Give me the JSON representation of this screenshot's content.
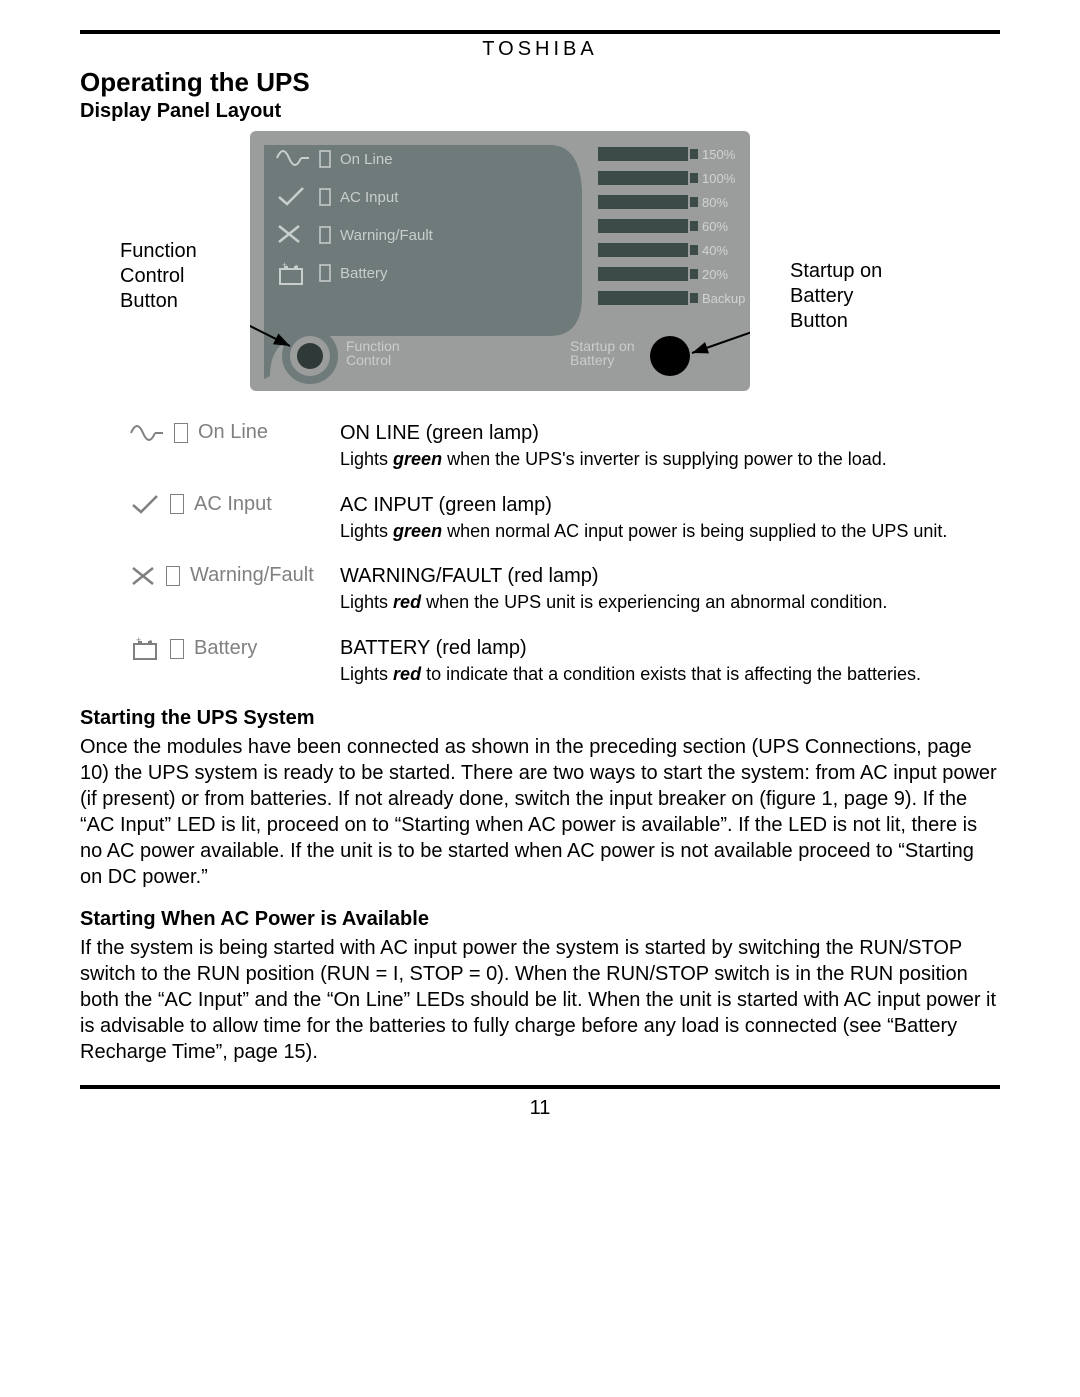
{
  "brand": "TOSHIBA",
  "page_number": "11",
  "h1": "Operating the UPS",
  "h2_panel": "Display Panel Layout",
  "h3_start": "Starting the UPS System",
  "h3_ac": "Starting When AC Power is Available",
  "callouts": {
    "function_control": "Function\nControl\nButton",
    "startup_battery": "Startup on\nBattery\nButton"
  },
  "panel": {
    "bg_outer": "#9a9d9c",
    "bg_inner": "#6f7b7a",
    "corner_fill": "#4a5856",
    "text_color": "#c8cecc",
    "button_fill": "#2f3a38",
    "status": [
      {
        "icon": "sine",
        "label": "On Line"
      },
      {
        "icon": "check",
        "label": "AC Input"
      },
      {
        "icon": "x",
        "label": "Warning/Fault"
      },
      {
        "icon": "battery",
        "label": "Battery"
      }
    ],
    "fc_label": "Function\nControl",
    "sb_label": "Startup on\nBattery",
    "bars": [
      "150%",
      "100%",
      "80%",
      "60%",
      "40%",
      "20%",
      "Backup"
    ],
    "bar_fill": "#3c4a48",
    "bar_label_color": "#cfd4d2"
  },
  "defs": [
    {
      "icon": "sine",
      "icon_label": "On Line",
      "title": "ON LINE (green lamp)",
      "pre": "Lights ",
      "kw": "green",
      "kw_class": "kw-green",
      "post": " when the UPS's inverter is supplying power to the load."
    },
    {
      "icon": "check",
      "icon_label": "AC Input",
      "title": "AC INPUT (green lamp)",
      "pre": "Lights ",
      "kw": "green",
      "kw_class": "kw-green",
      "post": " when normal AC input power is being supplied to the UPS unit."
    },
    {
      "icon": "x",
      "icon_label": "Warning/Fault",
      "title": "WARNING/FAULT (red lamp)",
      "pre": "Lights ",
      "kw": "red",
      "kw_class": "kw-red",
      "post": " when the UPS unit is experiencing an abnormal condition."
    },
    {
      "icon": "battery",
      "icon_label": "Battery",
      "title": "BATTERY (red lamp)",
      "pre": "Lights ",
      "kw": "red",
      "kw_class": "kw-red",
      "post": " to indicate that a condition exists that is affecting the batteries."
    }
  ],
  "para_start": "Once the modules have been connected as shown in the preceding section (UPS Connections, page 10) the UPS system is ready to be started.  There are two ways to start the system:  from AC input power (if present) or from batteries.  If not already done, switch the input breaker on (figure 1, page 9).   If the “AC Input” LED is lit, proceed on to “Starting when AC power is available”.  If the LED is not lit, there is no AC power available.  If the unit is to be started when AC power is not available proceed to “Starting on DC power.”",
  "para_ac": "If the system is being started with AC input power the system is started by switching the RUN/STOP switch to the RUN position (RUN = I, STOP = 0).  When the RUN/STOP switch is in the RUN position both the “AC Input” and the “On Line” LEDs should be lit.  When the unit is started with AC input power it is advisable to allow time for the batteries to fully charge before any load is connected (see “Battery Recharge Time”, page 15)."
}
